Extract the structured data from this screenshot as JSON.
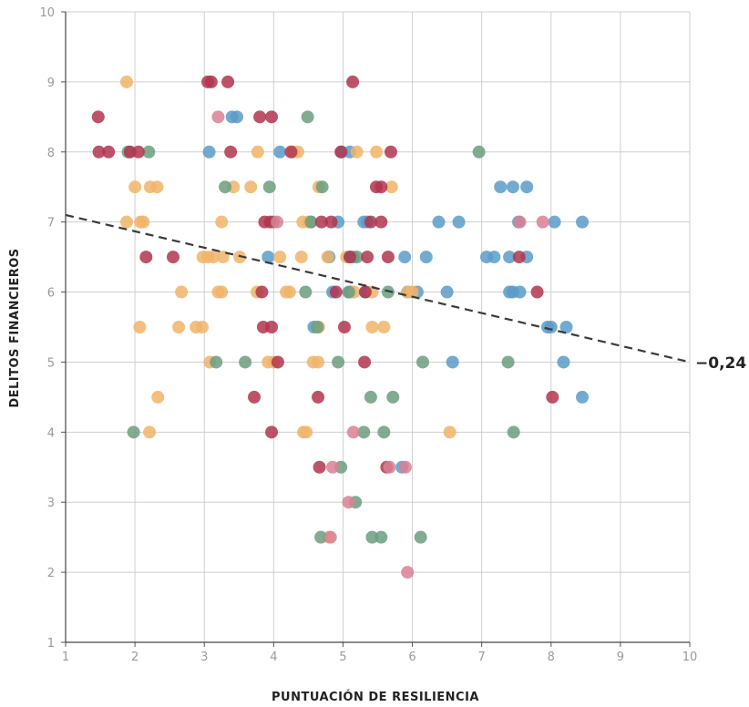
{
  "chart_data": {
    "type": "scatter",
    "xlabel": "PUNTUACIÓN DE RESILIENCIA",
    "ylabel": "DELITOS FINANCIEROS",
    "xlim": [
      1,
      10
    ],
    "ylim": [
      1,
      10
    ],
    "xticks": [
      "1",
      "2",
      "3",
      "4",
      "5",
      "6",
      "7",
      "8",
      "9",
      "10"
    ],
    "yticks": [
      "1",
      "2",
      "3",
      "4",
      "5",
      "6",
      "7",
      "8",
      "9",
      "10"
    ],
    "grid": true,
    "legend": "none",
    "colors": {
      "blue": "#5b9bc8",
      "orange": "#f0b468",
      "green": "#6b9e7f",
      "red": "#b0354d",
      "pink": "#d98095"
    },
    "trendline": {
      "x": [
        1,
        10
      ],
      "y": [
        7.1,
        5.0
      ],
      "annotation": "−0,24",
      "style": "dashed",
      "color": "#3a3a3a"
    },
    "series": [
      {
        "color": "blue",
        "points": [
          [
            3.07,
            8
          ],
          [
            3.4,
            8.5
          ],
          [
            3.47,
            8.5
          ],
          [
            4.09,
            8
          ],
          [
            4.98,
            8
          ],
          [
            5.1,
            8
          ],
          [
            4.53,
            7
          ],
          [
            4.93,
            7
          ],
          [
            5.3,
            7
          ],
          [
            5.35,
            7
          ],
          [
            6.38,
            7
          ],
          [
            6.67,
            7
          ],
          [
            7.27,
            7.5
          ],
          [
            7.45,
            7.5
          ],
          [
            7.65,
            7.5
          ],
          [
            7.53,
            7
          ],
          [
            8.05,
            7
          ],
          [
            8.45,
            7
          ],
          [
            4.8,
            6.5
          ],
          [
            5.15,
            6.5
          ],
          [
            5.89,
            6.5
          ],
          [
            6.2,
            6.5
          ],
          [
            7.07,
            6.5
          ],
          [
            7.18,
            6.5
          ],
          [
            7.4,
            6.5
          ],
          [
            7.65,
            6.5
          ],
          [
            3.92,
            6.5
          ],
          [
            4.85,
            6
          ],
          [
            5.1,
            6
          ],
          [
            5.33,
            6
          ],
          [
            5.93,
            6
          ],
          [
            6.07,
            6
          ],
          [
            6.5,
            6
          ],
          [
            7.4,
            6
          ],
          [
            7.45,
            6
          ],
          [
            7.55,
            6
          ],
          [
            4.58,
            5.5
          ],
          [
            7.95,
            5.5
          ],
          [
            8.0,
            5.5
          ],
          [
            8.22,
            5.5
          ],
          [
            6.58,
            5
          ],
          [
            8.18,
            5
          ],
          [
            8.45,
            4.5
          ],
          [
            5.85,
            3.5
          ]
        ]
      },
      {
        "color": "orange",
        "points": [
          [
            1.88,
            9
          ],
          [
            3.77,
            8
          ],
          [
            4.28,
            8
          ],
          [
            4.35,
            8
          ],
          [
            5.2,
            8
          ],
          [
            5.48,
            8
          ],
          [
            2.0,
            7.5
          ],
          [
            2.22,
            7.5
          ],
          [
            2.32,
            7.5
          ],
          [
            3.42,
            7.5
          ],
          [
            3.67,
            7.5
          ],
          [
            4.65,
            7.5
          ],
          [
            5.7,
            7.5
          ],
          [
            1.88,
            7
          ],
          [
            2.08,
            7
          ],
          [
            2.12,
            7
          ],
          [
            3.25,
            7
          ],
          [
            4.42,
            7
          ],
          [
            4.5,
            7
          ],
          [
            2.98,
            6.5
          ],
          [
            3.05,
            6.5
          ],
          [
            3.13,
            6.5
          ],
          [
            3.27,
            6.5
          ],
          [
            3.51,
            6.5
          ],
          [
            4.09,
            6.5
          ],
          [
            4.4,
            6.5
          ],
          [
            4.78,
            6.5
          ],
          [
            5.05,
            6.5
          ],
          [
            2.67,
            6
          ],
          [
            3.2,
            6
          ],
          [
            3.25,
            6
          ],
          [
            3.76,
            6
          ],
          [
            4.18,
            6
          ],
          [
            4.23,
            6
          ],
          [
            5.16,
            6
          ],
          [
            5.42,
            6
          ],
          [
            5.93,
            6
          ],
          [
            6.0,
            6
          ],
          [
            2.07,
            5.5
          ],
          [
            2.63,
            5.5
          ],
          [
            2.88,
            5.5
          ],
          [
            2.97,
            5.5
          ],
          [
            4.65,
            5.5
          ],
          [
            5.42,
            5.5
          ],
          [
            5.59,
            5.5
          ],
          [
            3.08,
            5
          ],
          [
            3.92,
            5
          ],
          [
            4.0,
            5
          ],
          [
            4.57,
            5
          ],
          [
            4.64,
            5
          ],
          [
            2.33,
            4.5
          ],
          [
            2.21,
            4
          ],
          [
            4.43,
            4
          ],
          [
            4.47,
            4
          ],
          [
            6.54,
            4
          ],
          [
            4.8,
            2.5
          ]
        ]
      },
      {
        "color": "green",
        "points": [
          [
            4.49,
            8.5
          ],
          [
            1.9,
            8
          ],
          [
            2.2,
            8
          ],
          [
            6.96,
            8
          ],
          [
            3.3,
            7.5
          ],
          [
            3.94,
            7.5
          ],
          [
            4.7,
            7.5
          ],
          [
            4.0,
            7
          ],
          [
            4.54,
            7
          ],
          [
            5.1,
            6.5
          ],
          [
            5.2,
            6.5
          ],
          [
            4.46,
            6
          ],
          [
            5.08,
            6
          ],
          [
            5.65,
            6
          ],
          [
            4.63,
            5.5
          ],
          [
            3.17,
            5
          ],
          [
            3.59,
            5
          ],
          [
            4.93,
            5
          ],
          [
            6.15,
            5
          ],
          [
            7.38,
            5
          ],
          [
            5.4,
            4.5
          ],
          [
            5.72,
            4.5
          ],
          [
            1.98,
            4
          ],
          [
            5.3,
            4
          ],
          [
            5.59,
            4
          ],
          [
            7.46,
            4
          ],
          [
            4.97,
            3.5
          ],
          [
            5.18,
            3
          ],
          [
            4.68,
            2.5
          ],
          [
            5.42,
            2.5
          ],
          [
            5.55,
            2.5
          ],
          [
            6.12,
            2.5
          ]
        ]
      },
      {
        "color": "red",
        "points": [
          [
            3.05,
            9
          ],
          [
            3.1,
            9
          ],
          [
            3.34,
            9
          ],
          [
            5.14,
            9
          ],
          [
            1.47,
            8.5
          ],
          [
            3.8,
            8.5
          ],
          [
            3.97,
            8.5
          ],
          [
            1.48,
            8
          ],
          [
            1.62,
            8
          ],
          [
            1.93,
            8
          ],
          [
            2.05,
            8
          ],
          [
            3.38,
            8
          ],
          [
            4.25,
            8
          ],
          [
            4.97,
            8
          ],
          [
            5.69,
            8
          ],
          [
            5.48,
            7.5
          ],
          [
            5.55,
            7.5
          ],
          [
            3.87,
            7
          ],
          [
            3.95,
            7
          ],
          [
            4.69,
            7
          ],
          [
            4.83,
            7
          ],
          [
            5.4,
            7
          ],
          [
            5.55,
            7
          ],
          [
            2.16,
            6.5
          ],
          [
            2.55,
            6.5
          ],
          [
            5.1,
            6.5
          ],
          [
            5.35,
            6.5
          ],
          [
            5.65,
            6.5
          ],
          [
            7.54,
            6.5
          ],
          [
            3.83,
            6
          ],
          [
            4.9,
            6
          ],
          [
            5.32,
            6
          ],
          [
            7.8,
            6
          ],
          [
            3.85,
            5.5
          ],
          [
            3.97,
            5.5
          ],
          [
            5.02,
            5.5
          ],
          [
            4.06,
            5
          ],
          [
            5.31,
            5
          ],
          [
            3.72,
            4.5
          ],
          [
            4.64,
            4.5
          ],
          [
            8.02,
            4.5
          ],
          [
            3.97,
            4
          ],
          [
            4.66,
            3.5
          ],
          [
            5.63,
            3.5
          ]
        ]
      },
      {
        "color": "pink",
        "points": [
          [
            3.2,
            8.5
          ],
          [
            4.05,
            7
          ],
          [
            7.55,
            7
          ],
          [
            7.88,
            7
          ],
          [
            5.15,
            4
          ],
          [
            4.85,
            3.5
          ],
          [
            5.67,
            3.5
          ],
          [
            5.9,
            3.5
          ],
          [
            5.08,
            3
          ],
          [
            4.82,
            2.5
          ],
          [
            5.93,
            2
          ]
        ]
      }
    ]
  }
}
